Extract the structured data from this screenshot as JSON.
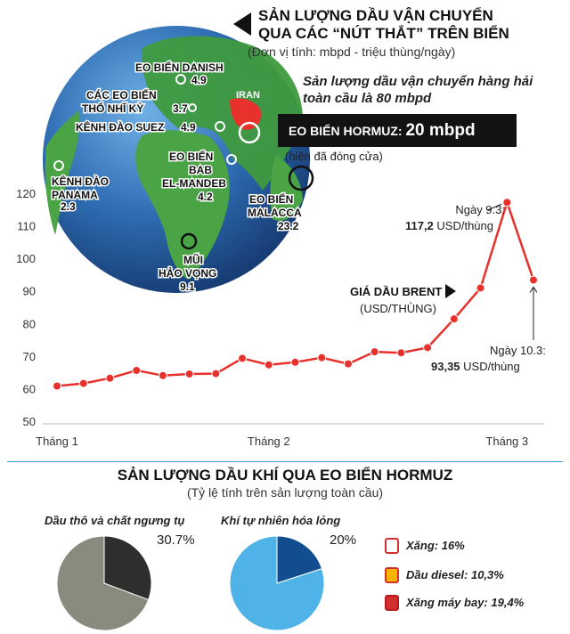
{
  "header": {
    "title_line1": "SẢN LƯỢNG DẦU VẬN CHUYỂN",
    "title_line2": "QUA CÁC “NÚT THẮT” TRÊN BIỂN",
    "unit": "(Đơn vị tính: mbpd - triệu thùng/ngày)",
    "total_line1": "Sản lượng dầu vận chuyển hàng hải",
    "total_line2": "toàn cầu là 80 mbpd"
  },
  "map": {
    "iran_label": "IRAN",
    "hormuz_label": "EO BIỂN HORMUZ: ",
    "hormuz_value": "20 mbpd",
    "hormuz_note": "(hiện đã đóng cửa)",
    "chokepoints": [
      {
        "name_lines": [
          "EO BIỂN DANISH"
        ],
        "value": "4.9"
      },
      {
        "name_lines": [
          "CÁC EO BIỂN",
          "THỔ NHĨ KỲ"
        ],
        "value": "3.7"
      },
      {
        "name_lines": [
          "KÊNH ĐÀO SUEZ"
        ],
        "value": "4.9"
      },
      {
        "name_lines": [
          "EO BIỂN",
          "BAB",
          "EL-MANDEB"
        ],
        "value": "4.2"
      },
      {
        "name_lines": [
          "KÊNH ĐÀO",
          "PANAMA"
        ],
        "value": "2.3"
      },
      {
        "name_lines": [
          "MŨI",
          "HẢO VỌNG"
        ],
        "value": "9.1"
      },
      {
        "name_lines": [
          "EO BIỂN",
          "MALACCA"
        ],
        "value": "23.2"
      }
    ]
  },
  "chart_data": [
    {
      "type": "line",
      "title": "GIÁ DẦU BRENT",
      "ylabel": "(USD/THÙNG)",
      "ylim": [
        50,
        120
      ],
      "yticks": [
        50,
        60,
        70,
        80,
        90,
        100,
        110,
        120
      ],
      "xticks": [
        "Tháng 1",
        "Tháng 2",
        "Tháng 3"
      ],
      "grid": false,
      "series": [
        {
          "name": "GIÁ DẦU BRENT",
          "color": "#e8302c",
          "values": [
            60.8,
            61.6,
            63.2,
            65.6,
            64.0,
            64.5,
            64.6,
            69.3,
            67.3,
            68.1,
            69.5,
            67.6,
            71.3,
            71.0,
            72.6,
            81.4,
            90.9,
            117.2,
            93.35
          ]
        }
      ],
      "annotations": [
        {
          "text_line1": "Ngày 9.3:",
          "value_text": "117,2",
          "unit_text": " USD/thùng"
        },
        {
          "text_line1": "Ngày 10.3:",
          "value_text": "93,35",
          "unit_text": " USD/thùng"
        }
      ]
    },
    {
      "type": "pie",
      "title": "Dầu thô và chất ngưng tụ",
      "label": "30.7%",
      "values": [
        30.7,
        69.3
      ],
      "colors": [
        "#2e2e2e",
        "#8a8a7e"
      ]
    },
    {
      "type": "pie",
      "title": "Khí tự nhiên hóa lỏng",
      "label": "20%",
      "values": [
        20,
        80
      ],
      "colors": [
        "#124e8f",
        "#4fb3e8"
      ]
    }
  ],
  "section2": {
    "title": "SẢN LƯỢNG DẦU KHÍ QUA EO BIỂN HORMUZ",
    "subtitle": "(Tỷ lệ tính trên sản lượng toàn cầu)"
  },
  "fuels": [
    {
      "label": "Xăng: 16%",
      "icon": "gas-can-icon"
    },
    {
      "label": "Dầu diesel: 10,3%",
      "icon": "diesel-can-icon"
    },
    {
      "label": "Xăng máy bay: 19,4%",
      "icon": "jet-fuel-can-icon"
    }
  ]
}
